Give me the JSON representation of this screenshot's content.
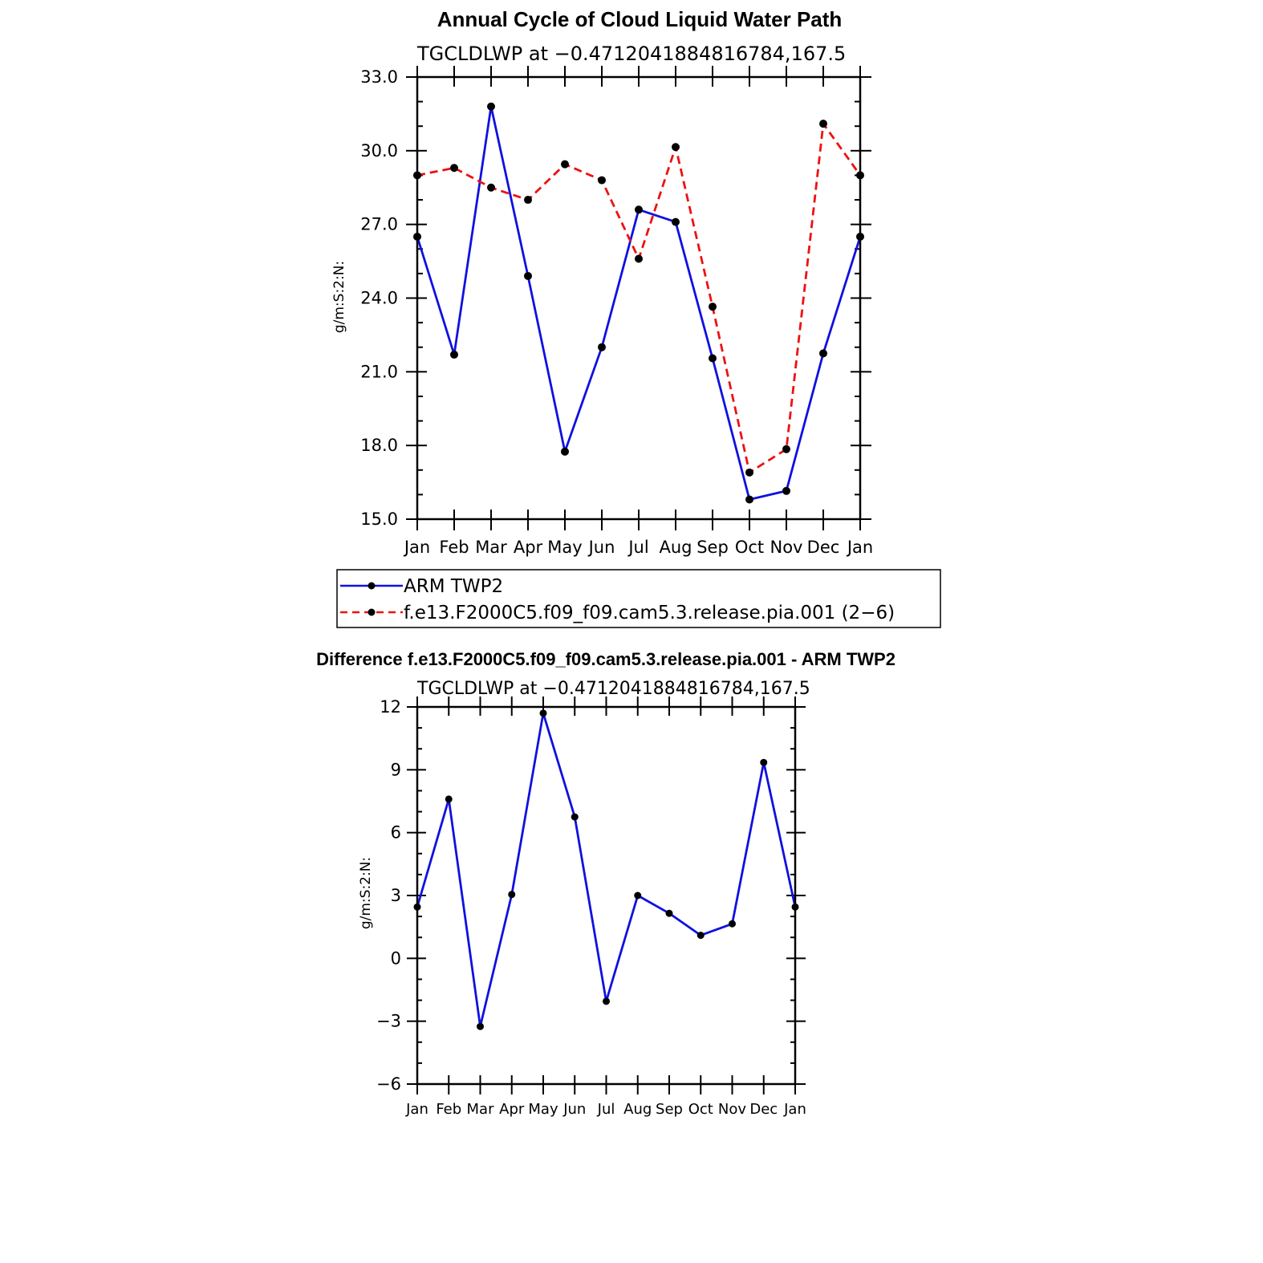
{
  "colors": {
    "series1": "#1010e0",
    "series2": "#ee1111",
    "marker": "#000000",
    "axis": "#000000"
  },
  "chart_data": [
    {
      "type": "line",
      "title": "Annual Cycle of Cloud Liquid Water Path",
      "subtitle": "TGCLDLWP at −0.4712041884816784,167.5",
      "xlabel": "",
      "ylabel": "g/m:S:2:N:",
      "categories": [
        "Jan",
        "Feb",
        "Mar",
        "Apr",
        "May",
        "Jun",
        "Jul",
        "Aug",
        "Sep",
        "Oct",
        "Nov",
        "Dec",
        "Jan"
      ],
      "ylim": [
        15.0,
        33.0
      ],
      "yticks": [
        15.0,
        18.0,
        21.0,
        24.0,
        27.0,
        30.0,
        33.0
      ],
      "ytick_labels": [
        "15.0",
        "18.0",
        "21.0",
        "24.0",
        "27.0",
        "30.0",
        "33.0"
      ],
      "series": [
        {
          "name": "ARM TWP2",
          "style": "solid",
          "values": [
            26.5,
            21.7,
            31.8,
            24.9,
            17.75,
            22.0,
            27.6,
            27.1,
            21.55,
            15.8,
            16.15,
            21.75,
            26.5
          ]
        },
        {
          "name": "f.e13.F2000C5.f09_f09.cam5.3.release.pia.001 (2−6)",
          "style": "dashed",
          "values": [
            29.0,
            29.3,
            28.5,
            28.0,
            29.45,
            28.8,
            25.6,
            30.15,
            23.65,
            16.9,
            17.85,
            31.1,
            29.0
          ]
        }
      ],
      "legend_position": "below"
    },
    {
      "type": "line",
      "title": "Difference f.e13.F2000C5.f09_f09.cam5.3.release.pia.001 - ARM TWP2",
      "subtitle": "TGCLDLWP at −0.4712041884816784,167.5",
      "xlabel": "",
      "ylabel": "g/m:S:2:N:",
      "categories": [
        "Jan",
        "Feb",
        "Mar",
        "Apr",
        "May",
        "Jun",
        "Jul",
        "Aug",
        "Sep",
        "Oct",
        "Nov",
        "Dec",
        "Jan"
      ],
      "ylim": [
        -6,
        12
      ],
      "yticks": [
        -6,
        -3,
        0,
        3,
        6,
        9,
        12
      ],
      "ytick_labels": [
        "−6",
        "−3",
        "0",
        "3",
        "6",
        "9",
        "12"
      ],
      "series": [
        {
          "name": "Difference",
          "style": "solid",
          "values": [
            2.45,
            7.6,
            -3.25,
            3.05,
            11.7,
            6.75,
            -2.05,
            3.0,
            2.15,
            1.1,
            1.65,
            9.35,
            2.45
          ]
        }
      ]
    }
  ]
}
